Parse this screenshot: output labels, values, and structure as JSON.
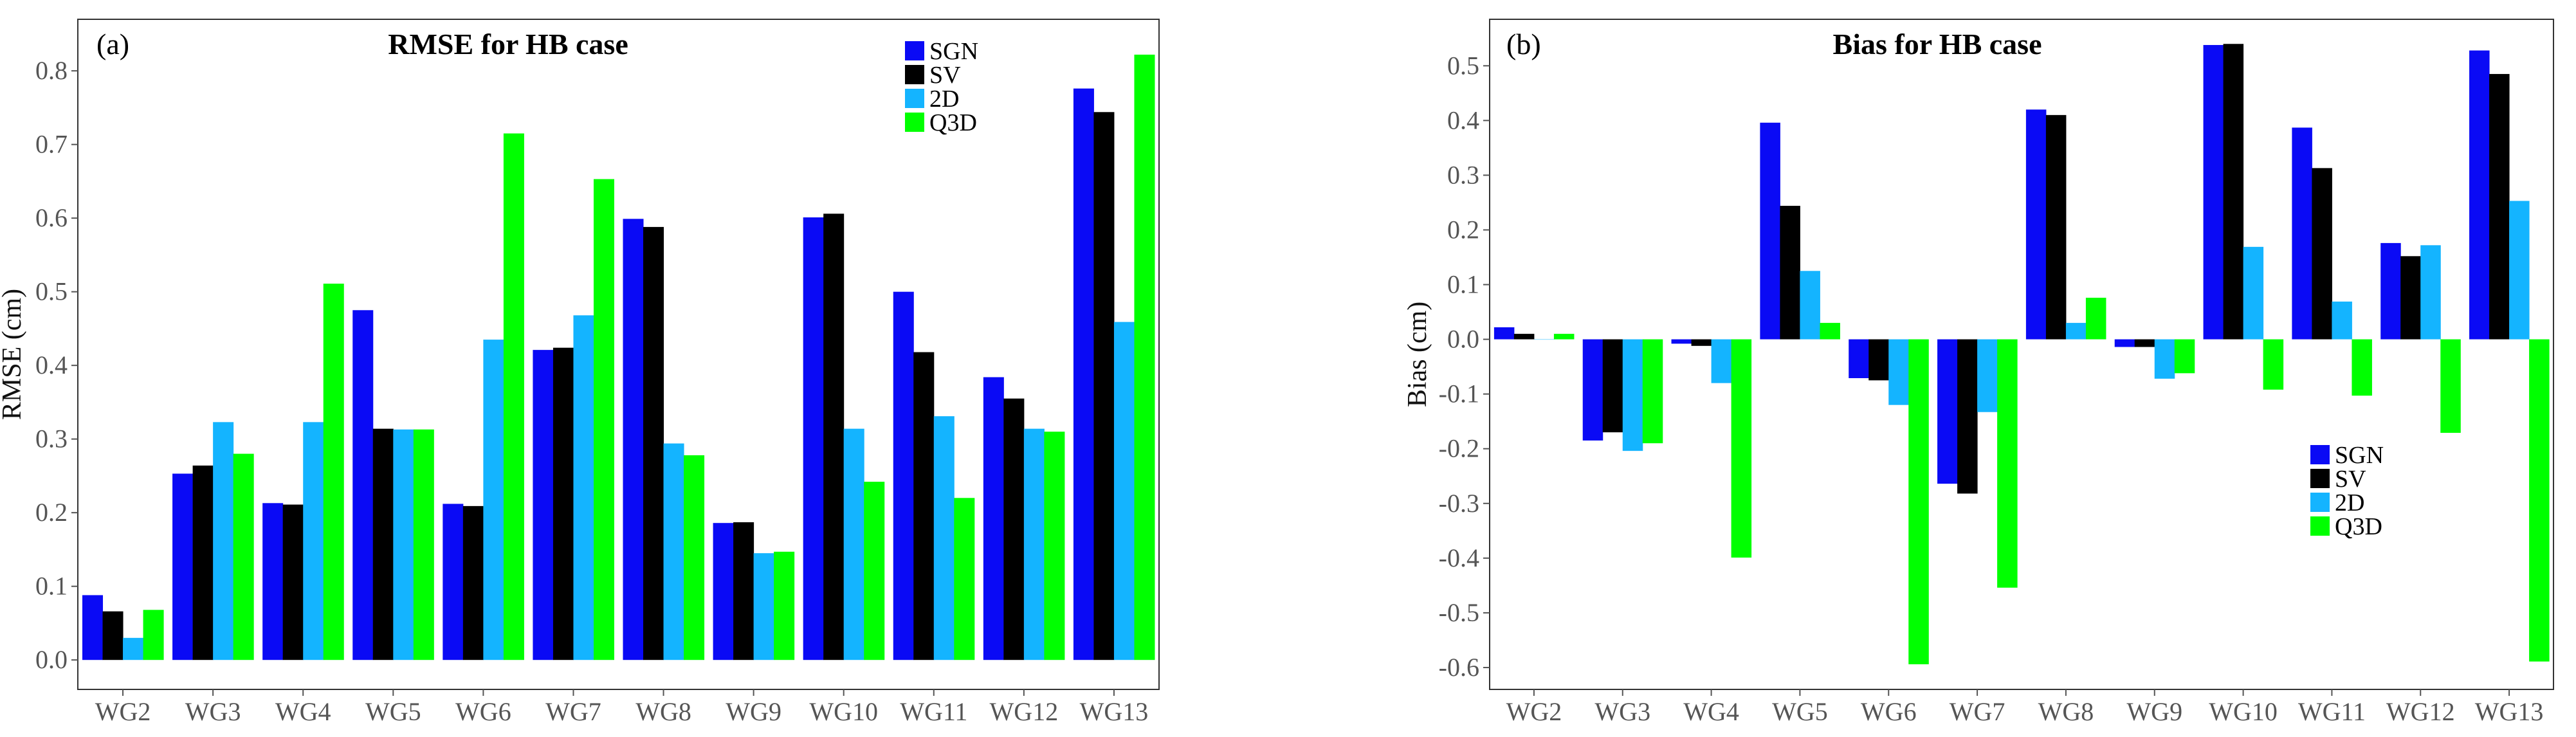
{
  "colors": {
    "SGN": "#0a0af5",
    "SV": "#000000",
    "2D": "#14b4ff",
    "Q3D": "#00ff00"
  },
  "chart_data": [
    {
      "type": "bar",
      "panel_label": "(a)",
      "title": "RMSE for HB case",
      "xlabel": "",
      "ylabel": "RMSE (cm)",
      "ylim": [
        -0.04,
        0.87
      ],
      "yticks": [
        0.0,
        0.1,
        0.2,
        0.3,
        0.4,
        0.5,
        0.6,
        0.7,
        0.8
      ],
      "ytick_labels": [
        "0.0",
        "0.1",
        "0.2",
        "0.3",
        "0.4",
        "0.5",
        "0.6",
        "0.7",
        "0.8"
      ],
      "legend_position": "top-right",
      "categories": [
        "WG2",
        "WG3",
        "WG4",
        "WG5",
        "WG6",
        "WG7",
        "WG8",
        "WG9",
        "WG10",
        "WG11",
        "WG12",
        "WG13"
      ],
      "series": [
        {
          "name": "SGN",
          "values": [
            0.088,
            0.253,
            0.213,
            0.475,
            0.212,
            0.421,
            0.599,
            0.186,
            0.601,
            0.5,
            0.384,
            0.776
          ]
        },
        {
          "name": "SV",
          "values": [
            0.066,
            0.264,
            0.211,
            0.314,
            0.209,
            0.424,
            0.588,
            0.187,
            0.606,
            0.418,
            0.355,
            0.744
          ]
        },
        {
          "name": "2D",
          "values": [
            0.03,
            0.323,
            0.323,
            0.313,
            0.435,
            0.468,
            0.294,
            0.145,
            0.314,
            0.331,
            0.314,
            0.459
          ]
        },
        {
          "name": "Q3D",
          "values": [
            0.068,
            0.28,
            0.511,
            0.313,
            0.715,
            0.653,
            0.278,
            0.147,
            0.242,
            0.22,
            0.31,
            0.822
          ]
        }
      ]
    },
    {
      "type": "bar",
      "panel_label": "(b)",
      "title": "Bias for HB case",
      "xlabel": "",
      "ylabel": "Bias (cm)",
      "ylim": [
        -0.64,
        0.585
      ],
      "yticks": [
        -0.6,
        -0.5,
        -0.4,
        -0.3,
        -0.2,
        -0.1,
        0.0,
        0.1,
        0.2,
        0.3,
        0.4,
        0.5
      ],
      "ytick_labels": [
        "-0.6",
        "-0.5",
        "-0.4",
        "-0.3",
        "-0.2",
        "-0.1",
        "0.0",
        "0.1",
        "0.2",
        "0.3",
        "0.4",
        "0.5"
      ],
      "legend_position": "center-right",
      "categories": [
        "WG2",
        "WG3",
        "WG4",
        "WG5",
        "WG6",
        "WG7",
        "WG8",
        "WG9",
        "WG10",
        "WG11",
        "WG12",
        "WG13"
      ],
      "series": [
        {
          "name": "SGN",
          "values": [
            0.022,
            -0.185,
            -0.008,
            0.396,
            -0.071,
            -0.264,
            0.42,
            -0.014,
            0.538,
            0.387,
            0.176,
            0.528
          ]
        },
        {
          "name": "SV",
          "values": [
            0.01,
            -0.17,
            -0.012,
            0.244,
            -0.075,
            -0.282,
            0.41,
            -0.014,
            0.54,
            0.313,
            0.152,
            0.485
          ]
        },
        {
          "name": "2D",
          "values": [
            0.0,
            -0.204,
            -0.08,
            0.125,
            -0.12,
            -0.133,
            0.03,
            -0.072,
            0.169,
            0.069,
            0.172,
            0.253
          ]
        },
        {
          "name": "Q3D",
          "values": [
            0.01,
            -0.19,
            -0.399,
            0.03,
            -0.594,
            -0.454,
            0.076,
            -0.062,
            -0.092,
            -0.103,
            -0.171,
            -0.589
          ]
        }
      ]
    }
  ]
}
